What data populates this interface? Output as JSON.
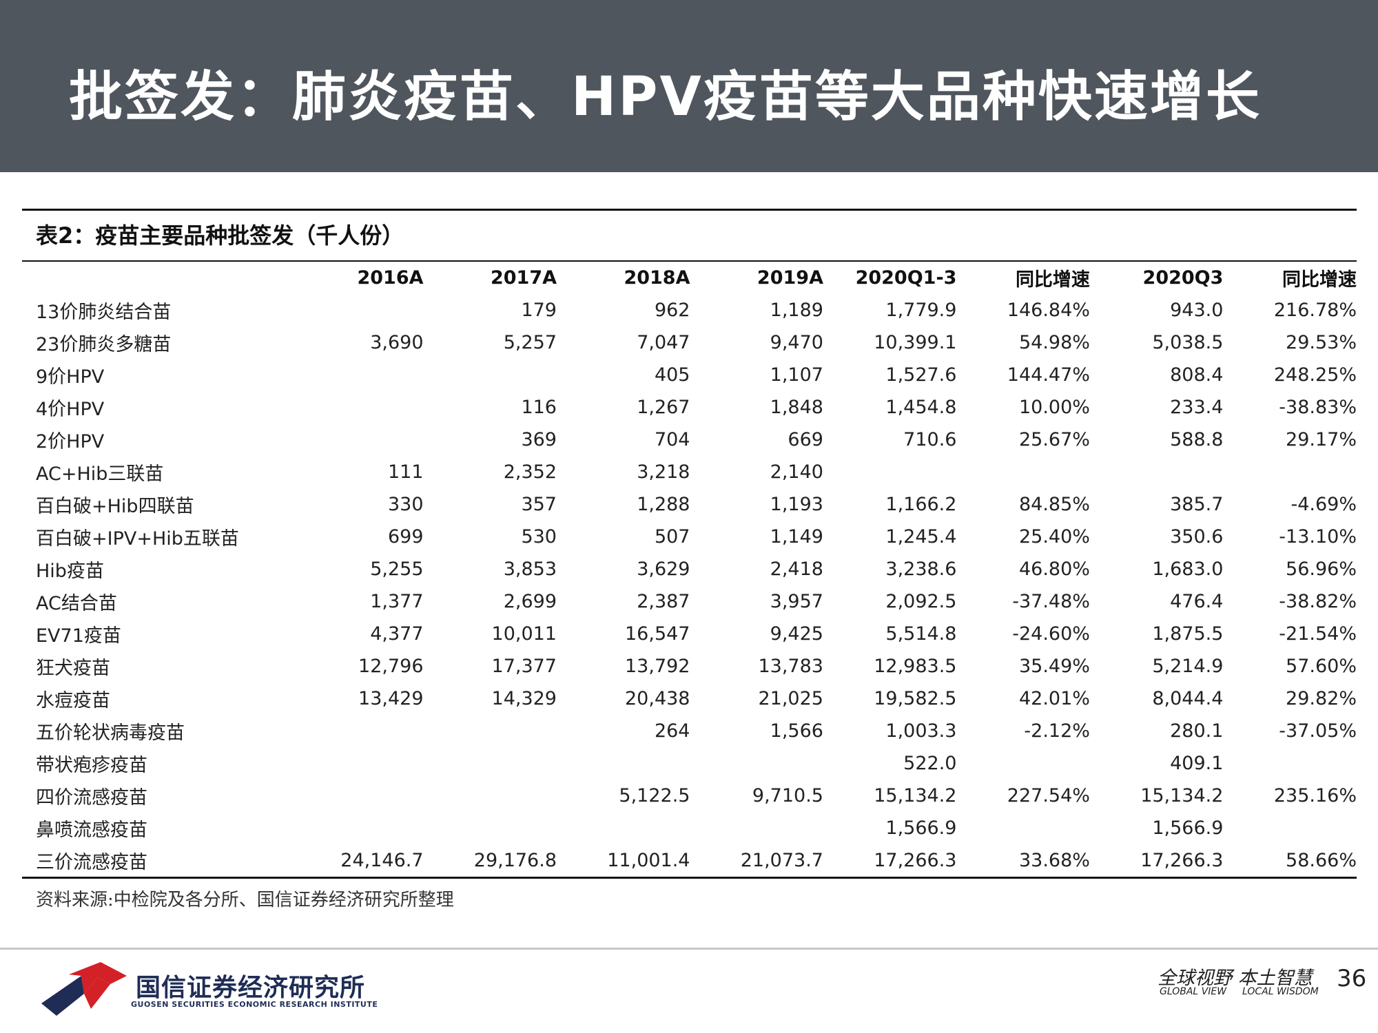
{
  "title": "批签发：肺炎疫苗、HPV疫苗等大品种快速增长",
  "table": {
    "caption": "表2：疫苗主要品种批签发（千人份）",
    "headers": [
      "",
      "2016A",
      "2017A",
      "2018A",
      "2019A",
      "2020Q1-3",
      "同比增速",
      "2020Q3",
      "同比增速"
    ],
    "rows": [
      [
        "13价肺炎结合苗",
        "",
        "179",
        "962",
        "1,189",
        "1,779.9",
        "146.84%",
        "943.0",
        "216.78%"
      ],
      [
        "23价肺炎多糖苗",
        "3,690",
        "5,257",
        "7,047",
        "9,470",
        "10,399.1",
        "54.98%",
        "5,038.5",
        "29.53%"
      ],
      [
        "9价HPV",
        "",
        "",
        "405",
        "1,107",
        "1,527.6",
        "144.47%",
        "808.4",
        "248.25%"
      ],
      [
        "4价HPV",
        "",
        "116",
        "1,267",
        "1,848",
        "1,454.8",
        "10.00%",
        "233.4",
        "-38.83%"
      ],
      [
        "2价HPV",
        "",
        "369",
        "704",
        "669",
        "710.6",
        "25.67%",
        "588.8",
        "29.17%"
      ],
      [
        "AC+Hib三联苗",
        "111",
        "2,352",
        "3,218",
        "2,140",
        "",
        "",
        "",
        ""
      ],
      [
        "百白破+Hib四联苗",
        "330",
        "357",
        "1,288",
        "1,193",
        "1,166.2",
        "84.85%",
        "385.7",
        "-4.69%"
      ],
      [
        "百白破+IPV+Hib五联苗",
        "699",
        "530",
        "507",
        "1,149",
        "1,245.4",
        "25.40%",
        "350.6",
        "-13.10%"
      ],
      [
        "Hib疫苗",
        "5,255",
        "3,853",
        "3,629",
        "2,418",
        "3,238.6",
        "46.80%",
        "1,683.0",
        "56.96%"
      ],
      [
        "AC结合苗",
        "1,377",
        "2,699",
        "2,387",
        "3,957",
        "2,092.5",
        "-37.48%",
        "476.4",
        "-38.82%"
      ],
      [
        "EV71疫苗",
        "4,377",
        "10,011",
        "16,547",
        "9,425",
        "5,514.8",
        "-24.60%",
        "1,875.5",
        "-21.54%"
      ],
      [
        "狂犬疫苗",
        "12,796",
        "17,377",
        "13,792",
        "13,783",
        "12,983.5",
        "35.49%",
        "5,214.9",
        "57.60%"
      ],
      [
        "水痘疫苗",
        "13,429",
        "14,329",
        "20,438",
        "21,025",
        "19,582.5",
        "42.01%",
        "8,044.4",
        "29.82%"
      ],
      [
        "五价轮状病毒疫苗",
        "",
        "",
        "264",
        "1,566",
        "1,003.3",
        "-2.12%",
        "280.1",
        "-37.05%"
      ],
      [
        "带状疱疹疫苗",
        "",
        "",
        "",
        "",
        "522.0",
        "",
        "409.1",
        ""
      ],
      [
        "四价流感疫苗",
        "",
        "",
        "5,122.5",
        "9,710.5",
        "15,134.2",
        "227.54%",
        "15,134.2",
        "235.16%"
      ],
      [
        "鼻喷流感疫苗",
        "",
        "",
        "",
        "",
        "1,566.9",
        "",
        "1,566.9",
        ""
      ],
      [
        "三价流感疫苗",
        "24,146.7",
        "29,176.8",
        "11,001.4",
        "21,073.7",
        "17,266.3",
        "33.68%",
        "17,266.3",
        "58.66%"
      ]
    ]
  },
  "source": "资料来源:中检院及各分所、国信证券经济研究所整理",
  "footer": {
    "company_cn": "国信证券经济研究所",
    "company_en": "GUOSEN SECURITIES ECONOMIC RESEARCH INSTITUTE",
    "slogan_cn": "全球视野 本土智慧",
    "slogan_en_left": "GLOBAL VIEW",
    "slogan_en_right": "LOCAL WISDOM",
    "page": "36"
  },
  "colors": {
    "header_bg": "#4f565d",
    "logo_red": "#d42027",
    "logo_navy": "#1f2d56"
  }
}
